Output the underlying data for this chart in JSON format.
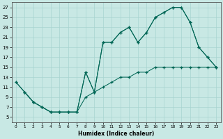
{
  "xlabel": "Humidex (Indice chaleur)",
  "bg_color": "#c8e8e4",
  "grid_color": "#a8d4d0",
  "line_color": "#006655",
  "xlim": [
    -0.5,
    23.5
  ],
  "ylim": [
    4,
    28
  ],
  "xticks": [
    0,
    1,
    2,
    3,
    4,
    5,
    6,
    7,
    8,
    9,
    10,
    11,
    12,
    13,
    14,
    15,
    16,
    17,
    18,
    19,
    20,
    21,
    22,
    23
  ],
  "yticks": [
    5,
    7,
    9,
    11,
    13,
    15,
    17,
    19,
    21,
    23,
    25,
    27
  ],
  "lines": [
    {
      "x": [
        0,
        1,
        2,
        3,
        4,
        5,
        6,
        7,
        8,
        9,
        10,
        11,
        12,
        13,
        14,
        15,
        16,
        17,
        18,
        19,
        20,
        21,
        22,
        23
      ],
      "y": [
        12,
        10,
        8,
        7,
        6,
        6,
        6,
        6,
        14,
        10,
        20,
        20,
        22,
        23,
        20,
        22,
        25,
        26,
        27,
        27,
        24,
        19,
        17,
        15
      ]
    },
    {
      "x": [
        0,
        1,
        2,
        3,
        4,
        5,
        6,
        7,
        8,
        9,
        10,
        11,
        12,
        13,
        14,
        15,
        16,
        17,
        18,
        19,
        20,
        21,
        22,
        23
      ],
      "y": [
        12,
        10,
        8,
        7,
        6,
        6,
        6,
        6,
        9,
        10,
        11,
        12,
        13,
        13,
        14,
        14,
        15,
        15,
        15,
        15,
        15,
        15,
        15,
        15
      ]
    },
    {
      "x": [
        1,
        2,
        3,
        4,
        5,
        6,
        7,
        8,
        9,
        10,
        11,
        12,
        13,
        14,
        15,
        16,
        17,
        18,
        19,
        20,
        21,
        22,
        23
      ],
      "y": [
        10,
        8,
        7,
        6,
        6,
        6,
        6,
        14,
        10,
        20,
        20,
        22,
        23,
        20,
        22,
        25,
        26,
        27,
        27,
        24,
        19,
        17,
        15
      ]
    }
  ]
}
